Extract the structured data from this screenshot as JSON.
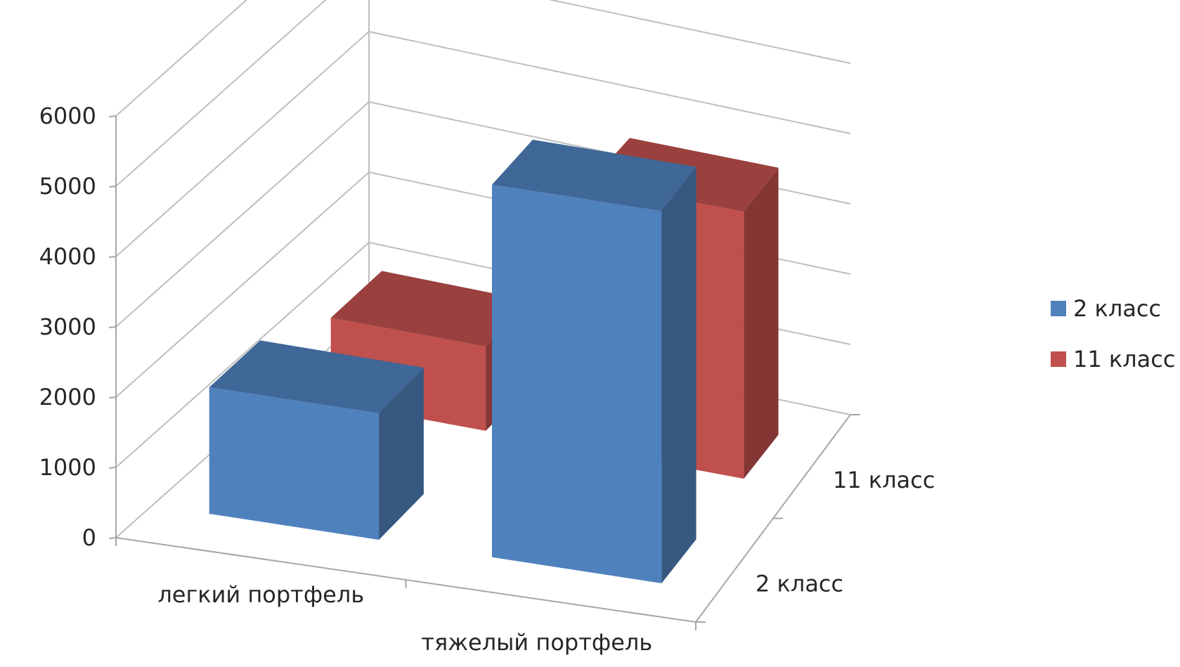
{
  "chart_data": {
    "type": "bar",
    "projection": "3d-clustered-column",
    "categories": [
      "легкий портфель",
      "тяжелый портфель"
    ],
    "depth_categories": [
      "2 класс",
      "11 класс"
    ],
    "series": [
      {
        "name": "2 класс",
        "color": "#4F81BD",
        "values": [
          1800,
          5300
        ]
      },
      {
        "name": "11 класс",
        "color": "#C0504D",
        "values": [
          1200,
          3800
        ]
      }
    ],
    "ylim": [
      0,
      6000
    ],
    "yticks": [
      0,
      1000,
      2000,
      3000,
      4000,
      5000,
      6000
    ],
    "grid": true,
    "legend": "right",
    "title": "",
    "xlabel": "",
    "ylabel": ""
  }
}
